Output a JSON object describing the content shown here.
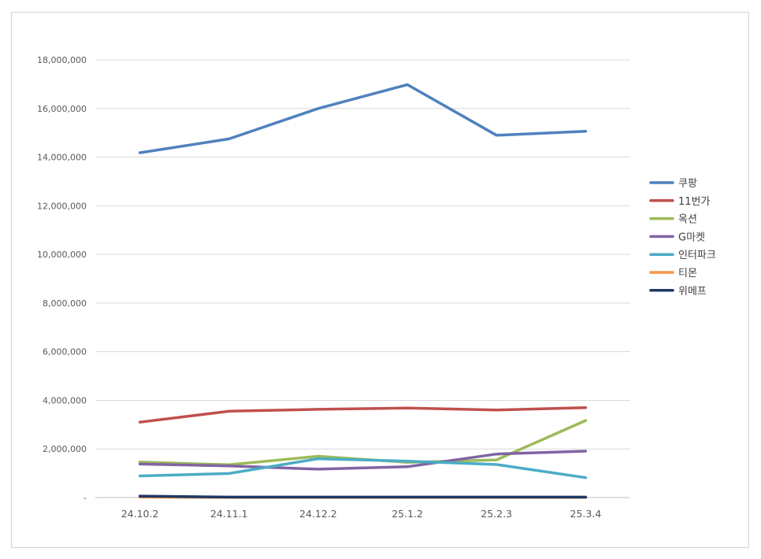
{
  "chart_data": {
    "type": "line",
    "categories": [
      "24.10.2",
      "24.11.1",
      "24.12.2",
      "25.1.2",
      "25.2.3",
      "25.3.4"
    ],
    "y_ticks": [
      "-",
      "2,000,000",
      "4,000,000",
      "6,000,000",
      "8,000,000",
      "10,000,000",
      "12,000,000",
      "14,000,000",
      "16,000,000",
      "18,000,000"
    ],
    "ylim": [
      0,
      18000000
    ],
    "grid": true,
    "legend_position": "right",
    "series": [
      {
        "name": "쿠팡",
        "color": "#4f81bd",
        "values": [
          14180000,
          14750000,
          16000000,
          16980000,
          14900000,
          15060000
        ]
      },
      {
        "name": "11번가",
        "color": "#c0504d",
        "values": [
          3100000,
          3550000,
          3630000,
          3680000,
          3600000,
          3700000
        ]
      },
      {
        "name": "옥션",
        "color": "#9bbb59",
        "values": [
          1460000,
          1350000,
          1700000,
          1450000,
          1550000,
          3170000
        ]
      },
      {
        "name": "G마켓",
        "color": "#8064a2",
        "values": [
          1380000,
          1300000,
          1170000,
          1270000,
          1790000,
          1910000
        ]
      },
      {
        "name": "인터파크",
        "color": "#4bacc6",
        "values": [
          890000,
          990000,
          1600000,
          1500000,
          1360000,
          820000
        ]
      },
      {
        "name": "티몬",
        "color": "#f79646",
        "values": [
          20000,
          10000,
          10000,
          10000,
          10000,
          10000
        ]
      },
      {
        "name": "위메프",
        "color": "#1f3864",
        "values": [
          60000,
          20000,
          20000,
          20000,
          20000,
          20000
        ]
      }
    ]
  }
}
